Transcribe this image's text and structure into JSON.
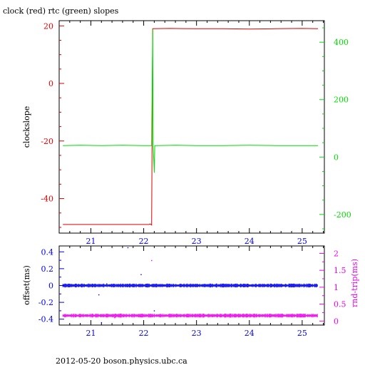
{
  "colors": {
    "clock": "#dd0000",
    "rtc": "#00dd00",
    "offset": "#0000ee",
    "rtt": "#ee00ee",
    "frame": "#000000",
    "text": "#000000"
  },
  "chart_data": [
    {
      "type": "line",
      "title": "clock (red) rtc (green) slopes",
      "ylabel": "clockslope",
      "x_ticks": [
        21,
        22,
        23,
        24,
        25
      ],
      "xlim": [
        20.4,
        25.42
      ],
      "y_left_ticks": [
        20,
        0,
        -20,
        -40
      ],
      "y_left_lim": [
        -52,
        21.8
      ],
      "y_left_color": "#dd0000",
      "y_right_ticks": [
        400,
        200,
        0,
        -200
      ],
      "y_right_lim": [
        -265,
        475
      ],
      "y_right_color": "#00dd00",
      "series": [
        {
          "axis": "left",
          "color": "#dd0000",
          "points": [
            [
              20.47,
              -49.0
            ],
            [
              21.5,
              -49.0
            ],
            [
              22.1,
              -49.0
            ],
            [
              22.12,
              -48.8
            ],
            [
              22.15,
              -49.2
            ],
            [
              22.17,
              19.0
            ],
            [
              22.5,
              19.1
            ],
            [
              23.0,
              19.0
            ],
            [
              23.5,
              19.0
            ],
            [
              24.0,
              18.9
            ],
            [
              24.5,
              19.0
            ],
            [
              25.0,
              19.1
            ],
            [
              25.3,
              19.0
            ]
          ]
        },
        {
          "axis": "right",
          "color": "#00dd00",
          "points": [
            [
              20.47,
              40
            ],
            [
              20.8,
              41
            ],
            [
              21.2,
              40
            ],
            [
              21.6,
              41
            ],
            [
              22.0,
              40
            ],
            [
              22.15,
              40
            ],
            [
              22.17,
              445
            ],
            [
              22.18,
              40
            ],
            [
              22.2,
              -55
            ],
            [
              22.21,
              40
            ],
            [
              22.23,
              40
            ],
            [
              22.6,
              41
            ],
            [
              23.0,
              40
            ],
            [
              23.5,
              40
            ],
            [
              24.0,
              41
            ],
            [
              24.5,
              40
            ],
            [
              25.0,
              40
            ],
            [
              25.3,
              40
            ]
          ]
        }
      ]
    },
    {
      "type": "scatter",
      "ylabel": "offset(ms)",
      "y2label": "rnd-trip(ms)",
      "x_ticks": [
        21,
        22,
        23,
        24,
        25
      ],
      "xlim": [
        20.4,
        25.42
      ],
      "y_left_ticks": [
        0.4,
        0.2,
        0,
        -0.2,
        -0.4
      ],
      "y_left_tick_labels": [
        "0.4",
        "0.2",
        "0",
        "-0.2",
        "-0.4"
      ],
      "y_left_lim": [
        -0.47,
        0.47
      ],
      "y_left_color": "#0000ee",
      "y_right_ticks": [
        2,
        1.5,
        1,
        0.5,
        0
      ],
      "y_right_lim": [
        -0.12,
        2.22
      ],
      "y_right_color": "#ee00ee",
      "series": [
        {
          "name": "offset",
          "axis": "left",
          "color": "#0000ee",
          "level": 0.0,
          "range": [
            20.47,
            25.3
          ]
        },
        {
          "name": "rnd-trip",
          "axis": "right",
          "color": "#ee00ee",
          "level": 0.16,
          "range": [
            20.47,
            25.3
          ]
        }
      ],
      "outliers": [
        {
          "axis": "left",
          "color": "#0000ee",
          "x": 21.7,
          "y": 0.45
        },
        {
          "axis": "left",
          "color": "#0000ee",
          "x": 21.95,
          "y": 0.13
        },
        {
          "axis": "left",
          "color": "#0000ee",
          "x": 21.3,
          "y": 0.02
        },
        {
          "axis": "left",
          "color": "#0000ee",
          "x": 21.15,
          "y": -0.11
        },
        {
          "axis": "left",
          "color": "#0000ee",
          "x": 22.2,
          "y": -0.3
        },
        {
          "axis": "left",
          "color": "#0000ee",
          "x": 21.2,
          "y": -0.44
        },
        {
          "axis": "right",
          "color": "#ee00ee",
          "x": 22.15,
          "y": 1.79
        },
        {
          "axis": "right",
          "color": "#ee00ee",
          "x": 21.45,
          "y": 0.1
        }
      ]
    }
  ],
  "footer": "2012-05-20 boson.physics.ubc.ca"
}
